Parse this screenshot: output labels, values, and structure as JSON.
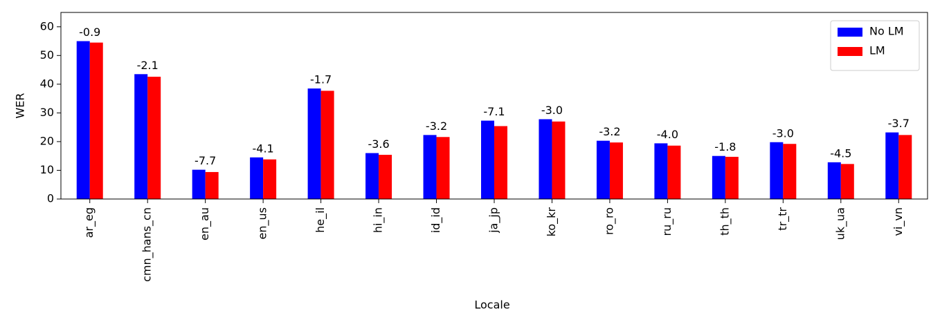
{
  "chart_data": {
    "type": "bar",
    "x_label": "Locale",
    "y_label": "WER",
    "categories": [
      "ar_eg",
      "cmn_hans_cn",
      "en_au",
      "en_us",
      "he_il",
      "hi_in",
      "id_id",
      "ja_jp",
      "ko_kr",
      "ro_ro",
      "ru_ru",
      "th_th",
      "tr_tr",
      "uk_ua",
      "vi_vn"
    ],
    "series": [
      {
        "name": "No LM",
        "color": "#0000ff",
        "values": [
          55.0,
          43.5,
          10.2,
          14.5,
          38.5,
          16.0,
          22.3,
          27.3,
          27.8,
          20.3,
          19.4,
          15.0,
          19.8,
          12.8,
          23.2
        ]
      },
      {
        "name": "LM",
        "color": "#ff0000",
        "values": [
          54.5,
          42.6,
          9.4,
          13.8,
          37.7,
          15.4,
          21.6,
          25.4,
          27.0,
          19.7,
          18.6,
          14.7,
          19.2,
          12.2,
          22.3
        ]
      }
    ],
    "annotations": [
      "-0.9",
      "-2.1",
      "-7.7",
      "-4.1",
      "-1.7",
      "-3.6",
      "-3.2",
      "-7.1",
      "-3.0",
      "-3.2",
      "-4.0",
      "-1.8",
      "-3.0",
      "-4.5",
      "-3.7"
    ],
    "ylim": [
      0,
      65
    ],
    "yticks": [
      0,
      10,
      20,
      30,
      40,
      50,
      60
    ],
    "grid": false,
    "legend": "upper right"
  }
}
